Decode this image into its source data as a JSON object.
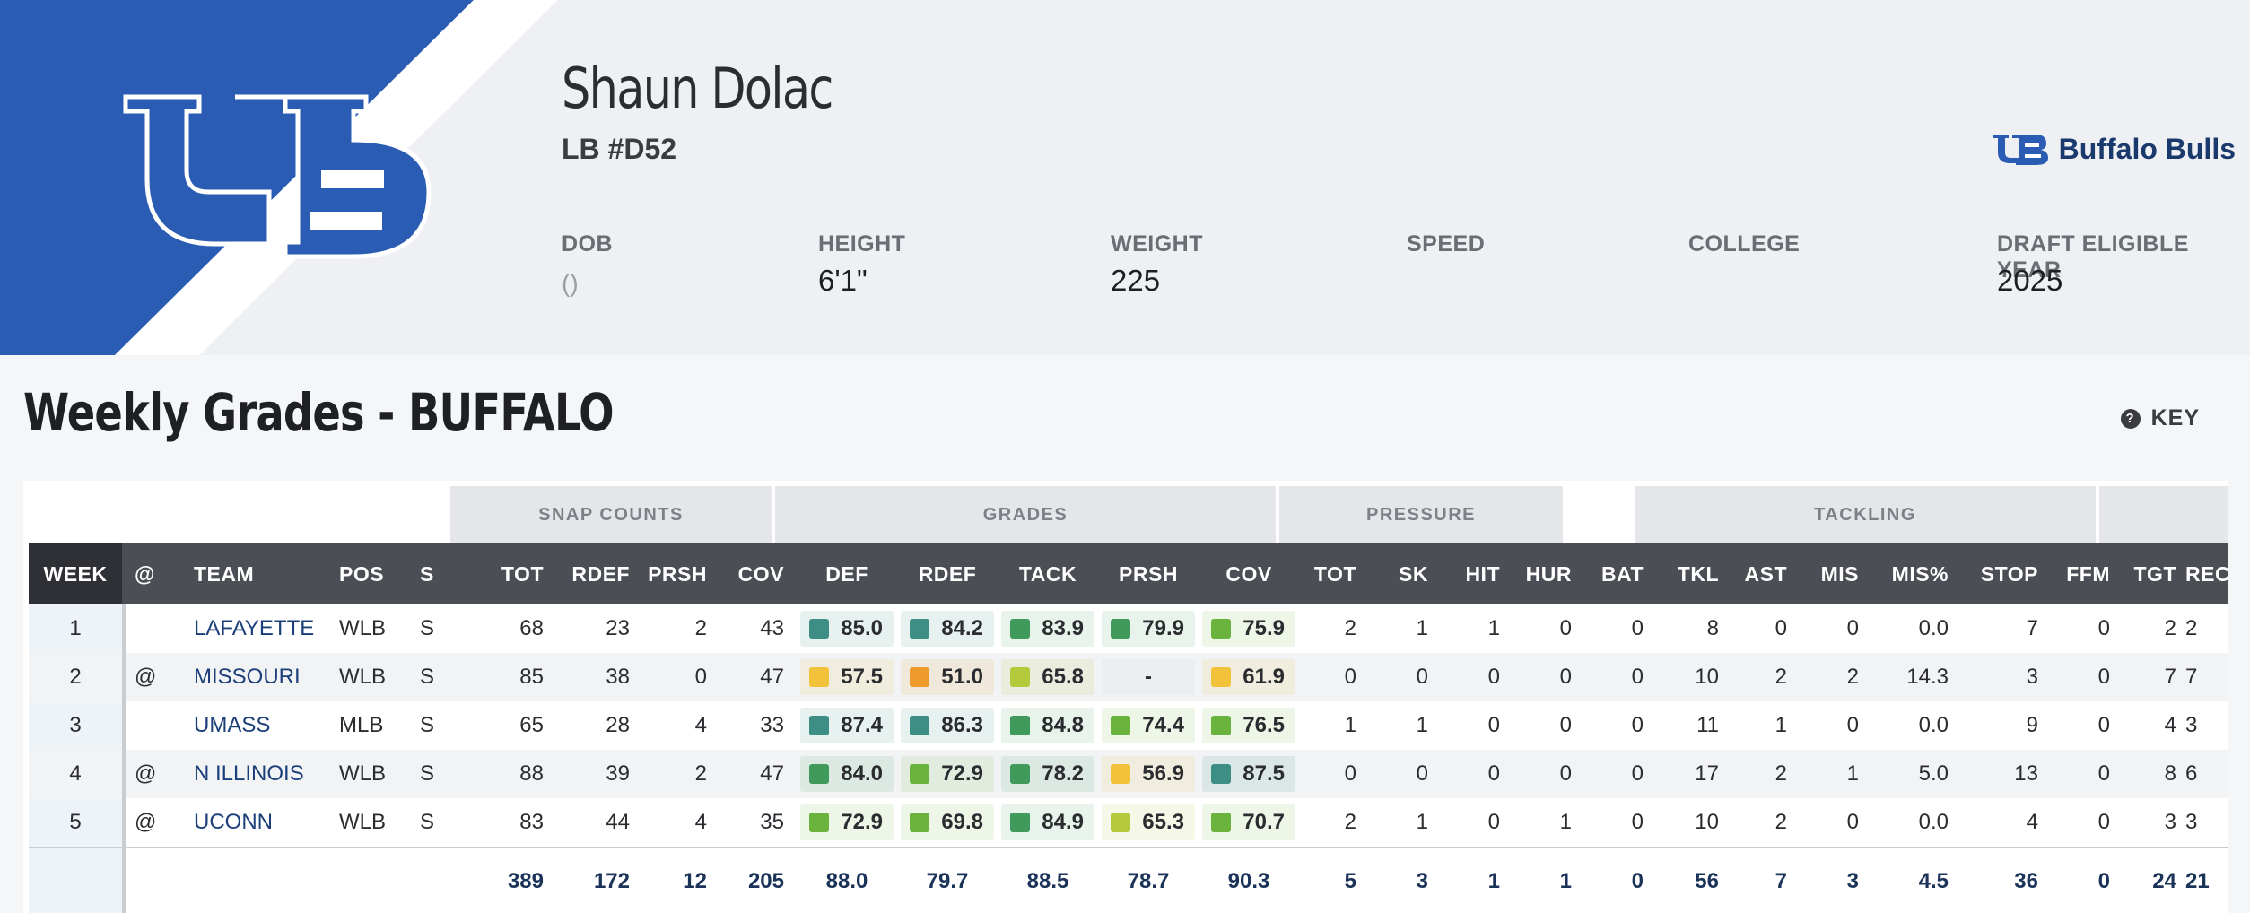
{
  "player": {
    "name": "Shaun Dolac",
    "position_number": "LB #D52",
    "team_name": "Buffalo Bulls"
  },
  "info": [
    {
      "label": "DOB",
      "value": "()"
    },
    {
      "label": "HEIGHT",
      "value": "6'1\""
    },
    {
      "label": "WEIGHT",
      "value": "225"
    },
    {
      "label": "SPEED",
      "value": ""
    },
    {
      "label": "COLLEGE",
      "value": ""
    },
    {
      "label": "DRAFT ELIGIBLE YEAR",
      "value": "2025"
    }
  ],
  "section": {
    "title": "Weekly Grades - BUFFALO",
    "key_label": "KEY"
  },
  "groups": [
    "SNAP COUNTS",
    "GRADES",
    "PRESSURE",
    "TACKLING"
  ],
  "columns": [
    "WEEK",
    "@",
    "TEAM",
    "POS",
    "S",
    "TOT",
    "RDEF",
    "PRSH",
    "COV",
    "DEF",
    "RDEF",
    "TACK",
    "PRSH",
    "COV",
    "TOT",
    "SK",
    "HIT",
    "HUR",
    "BAT",
    "TKL",
    "AST",
    "MIS",
    "MIS%",
    "STOP",
    "FFM",
    "TGT",
    "REC"
  ],
  "colors": {
    "elite_teal": "#3d8f86",
    "high_green": "#3f9a5c",
    "good_green": "#6ab33c",
    "above_lime": "#b5c93c",
    "avg_yellow": "#f2c23a",
    "below_orange": "#ef9a2d"
  },
  "rows": [
    {
      "week": "1",
      "at": "",
      "team": "LAFAYETTE",
      "pos": "WLB",
      "s": "S",
      "snap": [
        "68",
        "23",
        "2",
        "43"
      ],
      "grades": [
        {
          "v": "85.0",
          "c": "elite_teal"
        },
        {
          "v": "84.2",
          "c": "elite_teal"
        },
        {
          "v": "83.9",
          "c": "high_green"
        },
        {
          "v": "79.9",
          "c": "high_green"
        },
        {
          "v": "75.9",
          "c": "good_green"
        }
      ],
      "stats": [
        "2",
        "1",
        "1",
        "0",
        "0",
        "8",
        "0",
        "0",
        "0.0",
        "7",
        "0",
        "2",
        "2"
      ]
    },
    {
      "week": "2",
      "at": "@",
      "team": "MISSOURI",
      "pos": "WLB",
      "s": "S",
      "snap": [
        "85",
        "38",
        "0",
        "47"
      ],
      "grades": [
        {
          "v": "57.5",
          "c": "avg_yellow"
        },
        {
          "v": "51.0",
          "c": "below_orange"
        },
        {
          "v": "65.8",
          "c": "above_lime"
        },
        {
          "v": "-",
          "c": ""
        },
        {
          "v": "61.9",
          "c": "avg_yellow"
        }
      ],
      "stats": [
        "0",
        "0",
        "0",
        "0",
        "0",
        "10",
        "2",
        "2",
        "14.3",
        "3",
        "0",
        "7",
        "7"
      ]
    },
    {
      "week": "3",
      "at": "",
      "team": "UMASS",
      "pos": "MLB",
      "s": "S",
      "snap": [
        "65",
        "28",
        "4",
        "33"
      ],
      "grades": [
        {
          "v": "87.4",
          "c": "elite_teal"
        },
        {
          "v": "86.3",
          "c": "elite_teal"
        },
        {
          "v": "84.8",
          "c": "high_green"
        },
        {
          "v": "74.4",
          "c": "good_green"
        },
        {
          "v": "76.5",
          "c": "good_green"
        }
      ],
      "stats": [
        "1",
        "1",
        "0",
        "0",
        "0",
        "11",
        "1",
        "0",
        "0.0",
        "9",
        "0",
        "4",
        "3"
      ]
    },
    {
      "week": "4",
      "at": "@",
      "team": "N ILLINOIS",
      "pos": "WLB",
      "s": "S",
      "snap": [
        "88",
        "39",
        "2",
        "47"
      ],
      "grades": [
        {
          "v": "84.0",
          "c": "high_green"
        },
        {
          "v": "72.9",
          "c": "good_green"
        },
        {
          "v": "78.2",
          "c": "high_green"
        },
        {
          "v": "56.9",
          "c": "avg_yellow"
        },
        {
          "v": "87.5",
          "c": "elite_teal"
        }
      ],
      "stats": [
        "0",
        "0",
        "0",
        "0",
        "0",
        "17",
        "2",
        "1",
        "5.0",
        "13",
        "0",
        "8",
        "6"
      ]
    },
    {
      "week": "5",
      "at": "@",
      "team": "UCONN",
      "pos": "WLB",
      "s": "S",
      "snap": [
        "83",
        "44",
        "4",
        "35"
      ],
      "grades": [
        {
          "v": "72.9",
          "c": "good_green"
        },
        {
          "v": "69.8",
          "c": "good_green"
        },
        {
          "v": "84.9",
          "c": "high_green"
        },
        {
          "v": "65.3",
          "c": "above_lime"
        },
        {
          "v": "70.7",
          "c": "good_green"
        }
      ],
      "stats": [
        "2",
        "1",
        "0",
        "1",
        "0",
        "10",
        "2",
        "0",
        "0.0",
        "4",
        "0",
        "3",
        "3"
      ]
    }
  ],
  "totals": [
    "389",
    "172",
    "12",
    "205",
    "88.0",
    "79.7",
    "88.5",
    "78.7",
    "90.3",
    "5",
    "3",
    "1",
    "1",
    "0",
    "56",
    "7",
    "3",
    "4.5",
    "36",
    "0",
    "24",
    "21"
  ]
}
